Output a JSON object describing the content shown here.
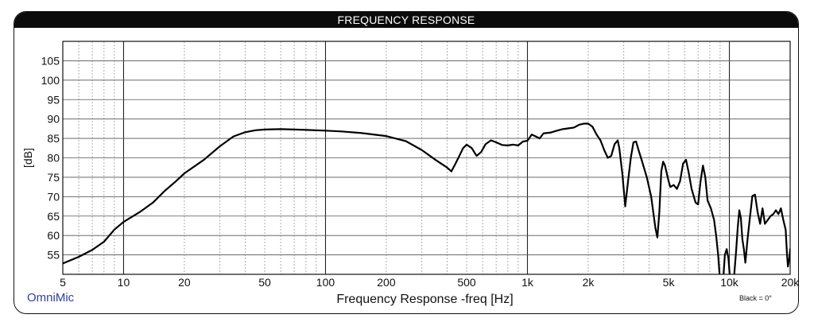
{
  "chart_data": {
    "type": "line",
    "title": "FREQUENCY RESPONSE",
    "xlabel": "Frequency Response -freq [Hz]",
    "ylabel": "[dB]",
    "x_scale": "log",
    "xlim": [
      5,
      20000
    ],
    "ylim": [
      50,
      110
    ],
    "grid": true,
    "x_ticks": [
      5,
      10,
      20,
      50,
      100,
      200,
      500,
      1000,
      2000,
      5000,
      10000,
      20000
    ],
    "x_tick_labels": [
      "5",
      "10",
      "20",
      "50",
      "100",
      "200",
      "500",
      "1k",
      "2k",
      "5k",
      "10k",
      "20k"
    ],
    "y_ticks": [
      55,
      60,
      65,
      70,
      75,
      80,
      85,
      90,
      95,
      100,
      105
    ],
    "series": [
      {
        "color": "#000000",
        "points": [
          [
            5,
            52.8
          ],
          [
            6,
            54.5
          ],
          [
            7,
            56.3
          ],
          [
            8,
            58.4
          ],
          [
            9,
            61.5
          ],
          [
            10,
            63.5
          ],
          [
            12,
            66.0
          ],
          [
            14,
            68.5
          ],
          [
            16,
            71.5
          ],
          [
            18,
            73.8
          ],
          [
            20,
            76.0
          ],
          [
            25,
            79.5
          ],
          [
            30,
            83.0
          ],
          [
            35,
            85.5
          ],
          [
            40,
            86.6
          ],
          [
            45,
            87.1
          ],
          [
            50,
            87.3
          ],
          [
            60,
            87.4
          ],
          [
            70,
            87.3
          ],
          [
            80,
            87.2
          ],
          [
            100,
            87.0
          ],
          [
            120,
            86.8
          ],
          [
            150,
            86.4
          ],
          [
            200,
            85.6
          ],
          [
            250,
            84.3
          ],
          [
            300,
            82.0
          ],
          [
            350,
            79.5
          ],
          [
            400,
            77.5
          ],
          [
            420,
            76.5
          ],
          [
            440,
            78.5
          ],
          [
            460,
            80.5
          ],
          [
            480,
            82.5
          ],
          [
            500,
            83.4
          ],
          [
            530,
            82.5
          ],
          [
            560,
            80.5
          ],
          [
            590,
            81.5
          ],
          [
            620,
            83.5
          ],
          [
            660,
            84.5
          ],
          [
            700,
            84.0
          ],
          [
            750,
            83.3
          ],
          [
            800,
            83.2
          ],
          [
            850,
            83.4
          ],
          [
            900,
            83.2
          ],
          [
            950,
            84.2
          ],
          [
            1000,
            84.4
          ],
          [
            1050,
            86.0
          ],
          [
            1100,
            85.5
          ],
          [
            1150,
            85.0
          ],
          [
            1200,
            86.3
          ],
          [
            1300,
            86.5
          ],
          [
            1400,
            87.0
          ],
          [
            1500,
            87.4
          ],
          [
            1600,
            87.6
          ],
          [
            1700,
            87.8
          ],
          [
            1800,
            88.5
          ],
          [
            1900,
            88.8
          ],
          [
            2000,
            88.8
          ],
          [
            2100,
            88.0
          ],
          [
            2200,
            86.0
          ],
          [
            2300,
            84.5
          ],
          [
            2400,
            82.0
          ],
          [
            2500,
            80.0
          ],
          [
            2600,
            80.5
          ],
          [
            2700,
            83.5
          ],
          [
            2800,
            84.5
          ],
          [
            2850,
            82.5
          ],
          [
            2950,
            76.0
          ],
          [
            3050,
            67.5
          ],
          [
            3150,
            74.0
          ],
          [
            3250,
            80.0
          ],
          [
            3350,
            84.0
          ],
          [
            3450,
            84.2
          ],
          [
            3550,
            82.0
          ],
          [
            3700,
            79.0
          ],
          [
            3900,
            75.0
          ],
          [
            4100,
            70.0
          ],
          [
            4300,
            62.0
          ],
          [
            4400,
            59.5
          ],
          [
            4500,
            66.0
          ],
          [
            4600,
            76.5
          ],
          [
            4700,
            79.0
          ],
          [
            4800,
            78.0
          ],
          [
            5000,
            74.0
          ],
          [
            5100,
            72.5
          ],
          [
            5300,
            73.0
          ],
          [
            5500,
            72.0
          ],
          [
            5700,
            74.0
          ],
          [
            5900,
            78.5
          ],
          [
            6100,
            79.5
          ],
          [
            6300,
            76.0
          ],
          [
            6500,
            72.0
          ],
          [
            6800,
            68.5
          ],
          [
            7000,
            68.0
          ],
          [
            7200,
            74.0
          ],
          [
            7400,
            78.0
          ],
          [
            7600,
            75.0
          ],
          [
            7800,
            69.0
          ],
          [
            8100,
            67.0
          ],
          [
            8400,
            64.0
          ],
          [
            8600,
            60.0
          ],
          [
            8800,
            55.0
          ],
          [
            9000,
            48.0
          ],
          [
            9300,
            48.0
          ],
          [
            9500,
            55.0
          ],
          [
            9700,
            56.5
          ],
          [
            9900,
            54.0
          ],
          [
            10100,
            48.0
          ],
          [
            10500,
            48.0
          ],
          [
            10800,
            56.0
          ],
          [
            11000,
            62.0
          ],
          [
            11200,
            66.5
          ],
          [
            11400,
            64.5
          ],
          [
            11600,
            59.0
          ],
          [
            11800,
            56.5
          ],
          [
            12000,
            53.0
          ],
          [
            12300,
            59.0
          ],
          [
            12600,
            64.0
          ],
          [
            13000,
            70.2
          ],
          [
            13400,
            70.5
          ],
          [
            13800,
            66.0
          ],
          [
            14200,
            63.0
          ],
          [
            14600,
            67.0
          ],
          [
            15000,
            63.0
          ],
          [
            15500,
            64.0
          ],
          [
            16000,
            65.0
          ],
          [
            16500,
            65.5
          ],
          [
            17000,
            66.5
          ],
          [
            17500,
            65.5
          ],
          [
            18000,
            67.0
          ],
          [
            18500,
            64.0
          ],
          [
            19000,
            61.5
          ],
          [
            19300,
            55.0
          ],
          [
            19500,
            52.0
          ],
          [
            19800,
            54.0
          ],
          [
            20000,
            56.5
          ],
          [
            20300,
            56.0
          ],
          [
            20600,
            52.0
          ],
          [
            21000,
            48.0
          ]
        ]
      }
    ]
  },
  "brand": "OmniMic",
  "note": "Black = 0°"
}
